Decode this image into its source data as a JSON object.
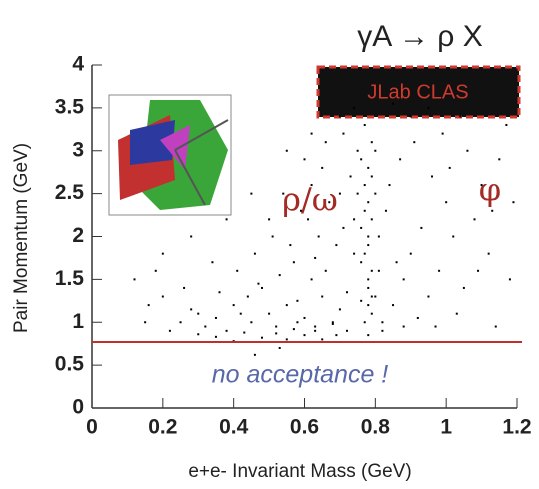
{
  "chart_data": {
    "type": "scatter",
    "title": "γA → ρ X",
    "badge": "JLab CLAS",
    "annotations": [
      "ρ/ω",
      "φ",
      "no acceptance !"
    ],
    "xlabel": "e+e- Invariant Mass (GeV)",
    "ylabel": "Pair Momentum (GeV)",
    "xlim": [
      0,
      1.2
    ],
    "ylim": [
      0,
      4
    ],
    "xticks": [
      0,
      0.2,
      0.4,
      0.6,
      0.8,
      1,
      1.2
    ],
    "yticks": [
      0,
      0.5,
      1,
      1.5,
      2,
      2.5,
      3,
      3.5,
      4
    ],
    "cut": 0.77,
    "cut_color": "#c0302a",
    "color": "#000000",
    "x": [
      0.77,
      0.78,
      0.78,
      0.79,
      0.77,
      0.78,
      0.79,
      0.78,
      0.77,
      0.78,
      0.79,
      0.78,
      0.78,
      0.77,
      0.79,
      0.45,
      0.5,
      0.55,
      0.6,
      0.65,
      0.7,
      0.48,
      0.52,
      0.58,
      0.62,
      0.68,
      0.72,
      0.42,
      0.66,
      0.74,
      0.35,
      0.38,
      0.4,
      0.3,
      0.32,
      0.25,
      0.28,
      0.22,
      0.44,
      0.47,
      0.53,
      0.57,
      0.63,
      0.69,
      0.71,
      0.2,
      0.18,
      0.15,
      0.16,
      0.12,
      0.26,
      0.34,
      0.36,
      0.41,
      0.46,
      0.51,
      0.56,
      0.61,
      0.64,
      0.67,
      0.59,
      0.62,
      0.65,
      0.7,
      0.73,
      0.75,
      0.5,
      0.54,
      0.6,
      0.66,
      0.71,
      0.74,
      0.58,
      0.63,
      0.69,
      0.82,
      0.85,
      0.88,
      0.9,
      0.93,
      0.95,
      0.98,
      1.0,
      1.02,
      0.84,
      0.87,
      0.91,
      0.96,
      0.99,
      0.86,
      1.03,
      1.05,
      1.08,
      1.1,
      1.12,
      1.15,
      1.17,
      1.06,
      1.09,
      1.13,
      1.01,
      1.04,
      0.97,
      0.92,
      0.81,
      0.8,
      0.81,
      0.83,
      0.8,
      0.82,
      0.76,
      0.76,
      0.75,
      0.76,
      0.79,
      0.8,
      0.77,
      0.78,
      0.79,
      0.76,
      0.4,
      0.48,
      0.55,
      0.6,
      0.35,
      0.43,
      0.52,
      0.57,
      0.63,
      0.68,
      0.72,
      0.3,
      0.46,
      0.53,
      0.65,
      0.62,
      0.7,
      0.74,
      0.85,
      0.9,
      0.55,
      0.45,
      0.38,
      0.28,
      0.2,
      1.18,
      1.19,
      0.95,
      1.14,
      0.88
    ],
    "values": [
      1.0,
      1.2,
      1.4,
      1.6,
      1.8,
      2.0,
      2.2,
      2.4,
      2.6,
      2.8,
      1.1,
      1.5,
      1.9,
      2.3,
      3.1,
      1.0,
      1.1,
      1.2,
      1.05,
      1.3,
      1.15,
      1.4,
      0.95,
      1.25,
      1.5,
      1.0,
      1.35,
      1.1,
      1.6,
      1.8,
      1.05,
      0.9,
      1.2,
      1.1,
      0.95,
      1.0,
      1.15,
      0.9,
      1.3,
      1.45,
      1.55,
      1.7,
      1.75,
      1.9,
      2.1,
      1.3,
      1.6,
      1.0,
      1.2,
      1.5,
      1.4,
      1.7,
      1.35,
      1.6,
      1.8,
      2.0,
      1.9,
      2.2,
      2.0,
      2.4,
      2.3,
      2.6,
      2.8,
      2.5,
      2.7,
      3.0,
      2.2,
      2.5,
      2.9,
      3.1,
      3.2,
      2.2,
      1.0,
      0.9,
      0.85,
      1.0,
      1.2,
      1.5,
      1.8,
      2.1,
      1.3,
      1.6,
      2.4,
      2.0,
      2.6,
      2.9,
      3.1,
      2.7,
      3.2,
      1.7,
      1.1,
      1.4,
      2.2,
      2.6,
      1.8,
      2.9,
      3.3,
      3.0,
      1.6,
      2.3,
      2.8,
      3.4,
      0.95,
      1.05,
      2.0,
      1.3,
      1.6,
      2.3,
      2.5,
      0.9,
      1.7,
      2.1,
      2.5,
      2.9,
      2.7,
      3.0,
      3.3,
      0.85,
      1.3,
      1.25,
      0.78,
      0.82,
      0.8,
      0.85,
      0.83,
      0.88,
      0.87,
      0.92,
      0.95,
      0.98,
      0.9,
      0.86,
      0.62,
      0.7,
      0.8,
      3.2,
      3.4,
      3.5,
      3.55,
      3.4,
      3.0,
      2.5,
      2.2,
      2.0,
      1.8,
      1.5,
      2.4,
      3.5,
      0.95,
      0.95
    ]
  }
}
